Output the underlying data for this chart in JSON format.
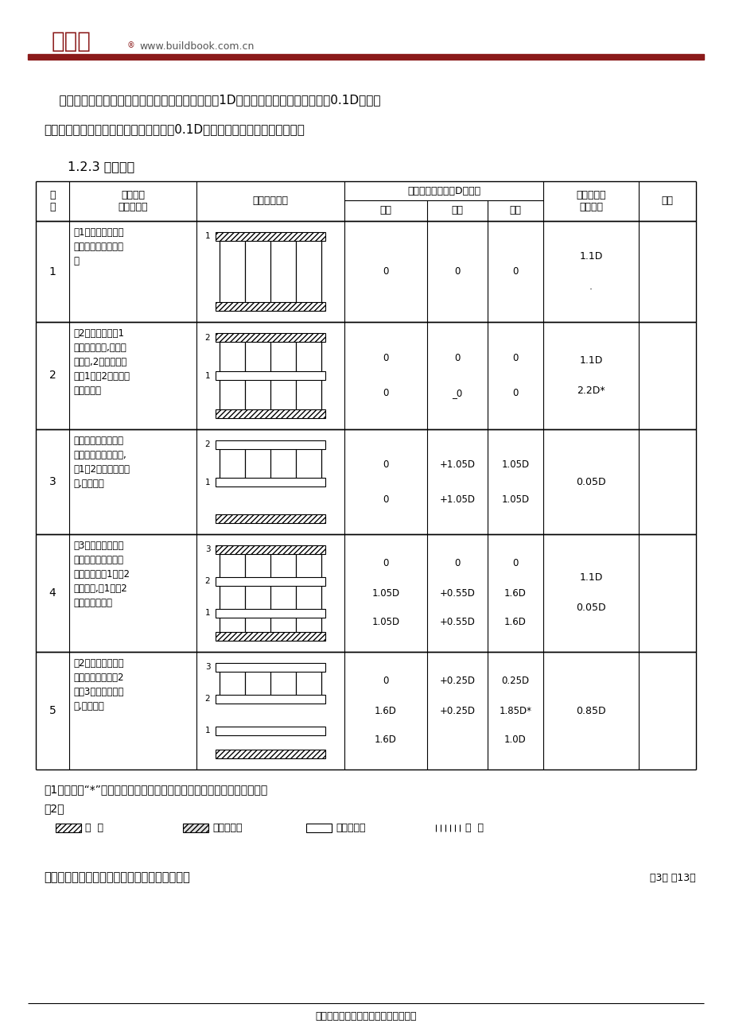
{
  "page_bg": "#ffffff",
  "logo_text": "工成网",
  "logo_url": "www.buildbook.com.cn",
  "logo_color": "#8B1A1A",
  "header_bar_color": "#8B1A1A",
  "intro_line1": "    将结构简化为单跨模式分析，假定每层楼板荷载为1D，每层支撑及二次支撑荷载为0.1D，超高",
  "intro_line2": "模板脚手架支撑可按正常楼层高度折算为0.1D的数倍。具体分析过程见表一。",
  "section_title": "1.2.3 分析结果",
  "note1": "注1：表中带“*”的荷载値分别表示最大支撑荷载和楼板的最大支承荷载。",
  "note2": "注2：",
  "legend_labels": [
    "地  基",
    "新浇楼板砖",
    "已结硬楼板",
    "支  撑"
  ],
  "bottom_text": "按表一可循环往复做下去，最后可得出如下规律",
  "page_info": "第3页 全13页",
  "footer": "版权归作者所有，本网站只提供下载。",
  "rows": [
    {
      "step": "1",
      "desc": "洵1层顶楼板砖。荷\n载全部由支撑传至地\n面",
      "load_rows": [
        [
          "0",
          "0",
          "0"
        ]
      ],
      "end_support": "1.1D\n\n.",
      "note": "",
      "diagram_type": 1
    },
    {
      "step": "2",
      "desc": "洵2层顶楼板砖。1\n层楼板被支撑,不能变\n形承载,2层楼板荷载\n通过1层、2层支撑全\n部传至地面",
      "load_rows": [
        [
          "0",
          "0",
          "0"
        ],
        [
          "0",
          "_0",
          "0"
        ]
      ],
      "end_support": "1.1D\n\n2.2D*",
      "note": "",
      "diagram_type": 2
    },
    {
      "step": "3",
      "desc": "拆除底层支撑。底层\n支撑荷载扣除自重后,\n呷1、2层楼板逆向传\n递,平均分配",
      "load_rows": [
        [
          "0",
          "+1.05D",
          "1.05D"
        ],
        [
          "0",
          "+1.05D",
          "1.05D"
        ]
      ],
      "end_support": "0.05D",
      "note": "",
      "diagram_type": 3
    },
    {
      "step": "4",
      "desc": "洵3层顶楼板砖。新\n浇砖重量通过两层支\n撑平均传递至1层、2\n层楼板上,且1层、2\n层楼板变形均匀",
      "load_rows": [
        [
          "0",
          "0",
          "0"
        ],
        [
          "1.05D",
          "+0.55D",
          "1.6D"
        ],
        [
          "1.05D",
          "+0.55D",
          "1.6D"
        ]
      ],
      "end_support": "1.1D\n\n0.05D",
      "note": "",
      "diagram_type": 4
    },
    {
      "step": "5",
      "desc": "拆2层支撑。其支撑\n荷载扣除自重后呷2\n层、3层楼板逆向传\n递,平均分配",
      "load_rows": [
        [
          "0",
          "+0.25D",
          "0.25D"
        ],
        [
          "1.6D",
          "+0.25D",
          "1.85D*"
        ],
        [
          "1.6D",
          "",
          "1.0D"
        ]
      ],
      "end_support": "0.85D",
      "note": "",
      "diagram_type": 5
    }
  ]
}
